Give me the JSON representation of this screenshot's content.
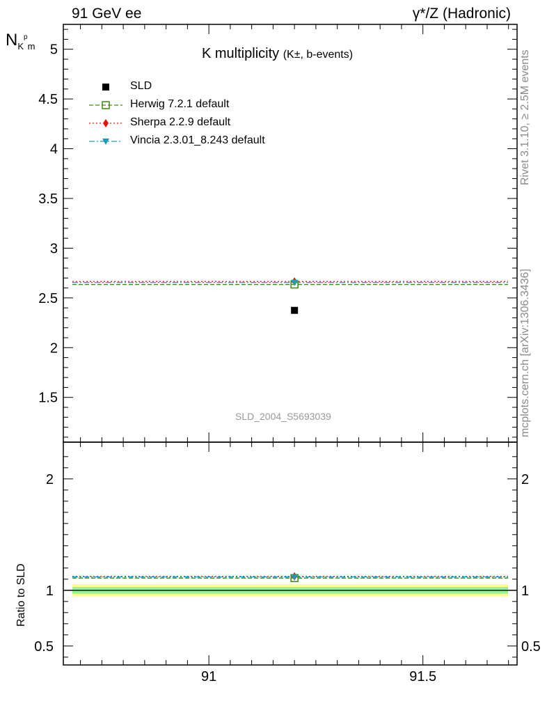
{
  "header": {
    "left": "91 GeV ee",
    "right": "γ*/Z (Hadronic)"
  },
  "title": {
    "main": "K multiplicity",
    "sub": "(K±, b-events)"
  },
  "ylabel_top": "N",
  "ylabel_bottom": "Ratio to SLD",
  "side_text": {
    "rivet": "Rivet 3.1.10, ≥ 2.5M events",
    "mcplots": "mcplots.cern.ch [arXiv:1306.3436]"
  },
  "watermark": "SLD_2004_S5693039",
  "legend": [
    {
      "label": "SLD",
      "color": "#000000",
      "marker": "square-filled"
    },
    {
      "label": "Herwig 7.2.1 default",
      "color": "#3a8a12",
      "marker": "square-open"
    },
    {
      "label": "Sherpa 2.2.9 default",
      "color": "#e8100c",
      "marker": "diamond"
    },
    {
      "label": "Vincia 2.3.01_8.243 default",
      "color": "#1f9ab8",
      "marker": "triangle-down"
    }
  ],
  "chart_data": {
    "type": "scatter",
    "x_ticks": [
      "91",
      "91.5"
    ],
    "xlim": [
      90.66,
      91.72
    ],
    "top": {
      "ylim": [
        1.05,
        5.25
      ],
      "y_ticks": [
        "1.5",
        "2",
        "2.5",
        "3",
        "3.5",
        "4",
        "4.5",
        "5"
      ],
      "data": {
        "name": "SLD",
        "x": 91.2,
        "y": 2.375
      },
      "series": [
        {
          "name": "Herwig 7.2.1 default",
          "x": 91.2,
          "y": 2.635,
          "style": "dashed"
        },
        {
          "name": "Sherpa 2.2.9 default",
          "x": 91.2,
          "y": 2.665,
          "style": "dotted"
        },
        {
          "name": "Vincia 2.3.01_8.243 default",
          "x": 91.2,
          "y": 2.655,
          "style": "dashdot"
        }
      ]
    },
    "bottom": {
      "ylim": [
        0.33,
        2.33
      ],
      "y_ticks": [
        "0.5",
        "1",
        "2"
      ],
      "series": [
        {
          "name": "Herwig 7.2.1 default",
          "x": 91.2,
          "y": 1.11,
          "style": "dashed"
        },
        {
          "name": "Sherpa 2.2.9 default",
          "x": 91.2,
          "y": 1.125,
          "style": "dotted"
        },
        {
          "name": "Vincia 2.3.01_8.243 default",
          "x": 91.2,
          "y": 1.12,
          "style": "dashdot"
        }
      ],
      "bands": [
        {
          "lo": 0.945,
          "hi": 1.055,
          "color": "#ffff84"
        },
        {
          "lo": 0.97,
          "hi": 1.03,
          "color": "#96f096"
        }
      ]
    }
  }
}
